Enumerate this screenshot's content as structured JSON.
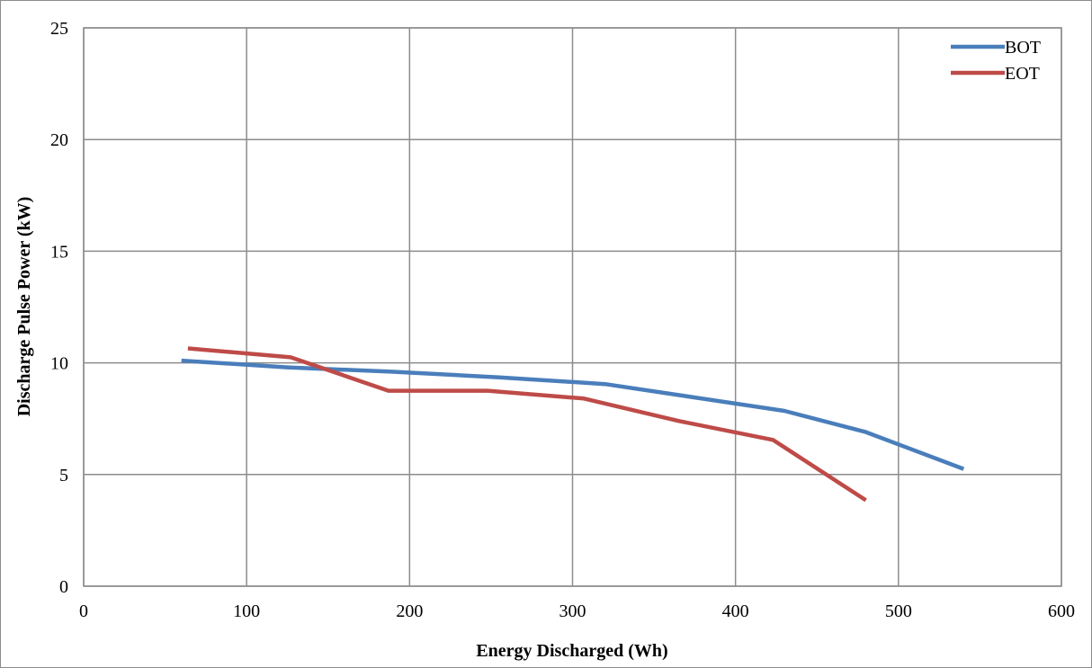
{
  "chart_data": {
    "type": "line",
    "title": "",
    "xlabel": "Energy Discharged (Wh)",
    "ylabel": "Discharge Pulse Power (kW)",
    "xlim": [
      0,
      600
    ],
    "ylim": [
      0,
      25
    ],
    "x_ticks": [
      0,
      100,
      200,
      300,
      400,
      500,
      600
    ],
    "y_ticks": [
      0,
      5,
      10,
      15,
      20,
      25
    ],
    "grid": true,
    "legend_position": "top-right",
    "series": [
      {
        "name": "BOT",
        "color": "#4a7ebb",
        "points": [
          [
            60,
            10.1
          ],
          [
            125,
            9.8
          ],
          [
            190,
            9.6
          ],
          [
            255,
            9.35
          ],
          [
            320,
            9.05
          ],
          [
            375,
            8.45
          ],
          [
            430,
            7.85
          ],
          [
            480,
            6.9
          ],
          [
            540,
            5.25
          ]
        ]
      },
      {
        "name": "EOT",
        "color": "#be4b48",
        "points": [
          [
            64,
            10.65
          ],
          [
            127,
            10.25
          ],
          [
            187,
            8.75
          ],
          [
            248,
            8.75
          ],
          [
            307,
            8.4
          ],
          [
            365,
            7.4
          ],
          [
            423,
            6.55
          ],
          [
            480,
            3.85
          ]
        ]
      }
    ]
  }
}
